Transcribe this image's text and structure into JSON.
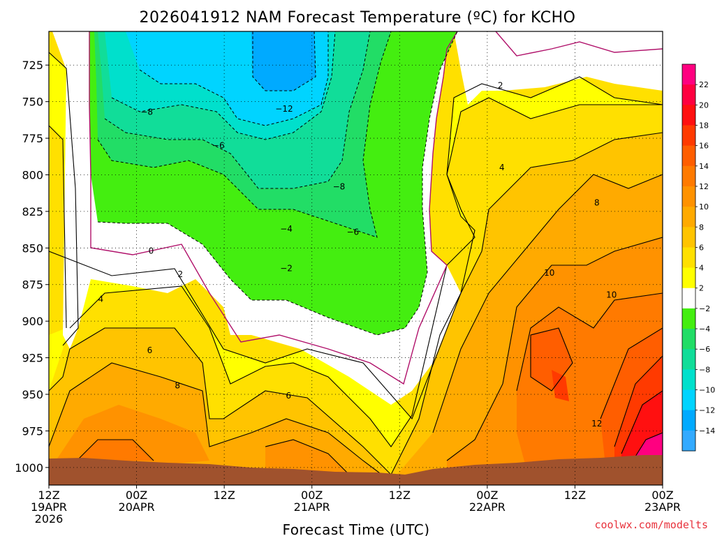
{
  "chart_data": {
    "type": "filled-contour",
    "title": "2026041912 NAM Forecast Temperature (ºC) for KCHO",
    "xlabel": "Forecast Time (UTC)",
    "ylabel": "",
    "credit": "coolwx.com/modelts",
    "x_ticks": [
      {
        "hour": 0,
        "line1": "12Z",
        "line2": "19APR",
        "line3": "2026"
      },
      {
        "hour": 12,
        "line1": "00Z",
        "line2": "20APR",
        "line3": ""
      },
      {
        "hour": 24,
        "line1": "12Z",
        "line2": "",
        "line3": ""
      },
      {
        "hour": 36,
        "line1": "00Z",
        "line2": "21APR",
        "line3": ""
      },
      {
        "hour": 48,
        "line1": "12Z",
        "line2": "",
        "line3": ""
      },
      {
        "hour": 60,
        "line1": "00Z",
        "line2": "22APR",
        "line3": ""
      },
      {
        "hour": 72,
        "line1": "12Z",
        "line2": "",
        "line3": ""
      },
      {
        "hour": 84,
        "line1": "00Z",
        "line2": "23APR",
        "line3": ""
      }
    ],
    "x_range_hours": [
      0,
      84
    ],
    "y_axis": {
      "unit": "hPa",
      "range": [
        1012,
        702
      ],
      "ticks": [
        725,
        750,
        775,
        800,
        825,
        850,
        875,
        900,
        925,
        950,
        975,
        1000
      ]
    },
    "grid": true,
    "colorbar": {
      "labels": [
        "22",
        "20",
        "18",
        "16",
        "14",
        "12",
        "10",
        "8",
        "6",
        "4",
        "2",
        "−2",
        "−4",
        "−6",
        "−8",
        "−10",
        "−12",
        "−14"
      ],
      "colors": [
        "#ff0080",
        "#ff0040",
        "#ff1010",
        "#ff3a00",
        "#ff5e00",
        "#ff7a00",
        "#ff9200",
        "#ffaa00",
        "#ffc400",
        "#ffe000",
        "#ffff00",
        "#ffffff",
        "#44ee10",
        "#22dd66",
        "#11dd99",
        "#00e0cc",
        "#00d4ff",
        "#00aaff",
        "#33aaff"
      ]
    },
    "contour_labels": [
      {
        "text": "2",
        "hour": 61.8,
        "p": 739
      },
      {
        "text": "4",
        "hour": 62.0,
        "p": 795
      },
      {
        "text": "8",
        "hour": 75.0,
        "p": 819
      },
      {
        "text": "10",
        "hour": 68.5,
        "p": 867
      },
      {
        "text": "10",
        "hour": 77.0,
        "p": 882
      },
      {
        "text": "12",
        "hour": 75.0,
        "p": 970
      },
      {
        "text": "6",
        "hour": 32.8,
        "p": 951
      },
      {
        "text": "8",
        "hour": 17.6,
        "p": 944
      },
      {
        "text": "6",
        "hour": 13.8,
        "p": 920
      },
      {
        "text": "4",
        "hour": 7.1,
        "p": 885
      },
      {
        "text": "2",
        "hour": 18.0,
        "p": 868
      },
      {
        "text": "0",
        "hour": 14.0,
        "p": 852
      },
      {
        "text": "−2",
        "hour": 32.5,
        "p": 864
      },
      {
        "text": "−4",
        "hour": 32.5,
        "p": 837
      },
      {
        "text": "−6",
        "hour": 41.6,
        "p": 839
      },
      {
        "text": "−6",
        "hour": 23.2,
        "p": 780
      },
      {
        "text": "−8",
        "hour": 39.7,
        "p": 808
      },
      {
        "text": "−8",
        "hour": 13.4,
        "p": 757
      },
      {
        "text": "−12",
        "hour": 32.2,
        "p": 755
      }
    ]
  }
}
